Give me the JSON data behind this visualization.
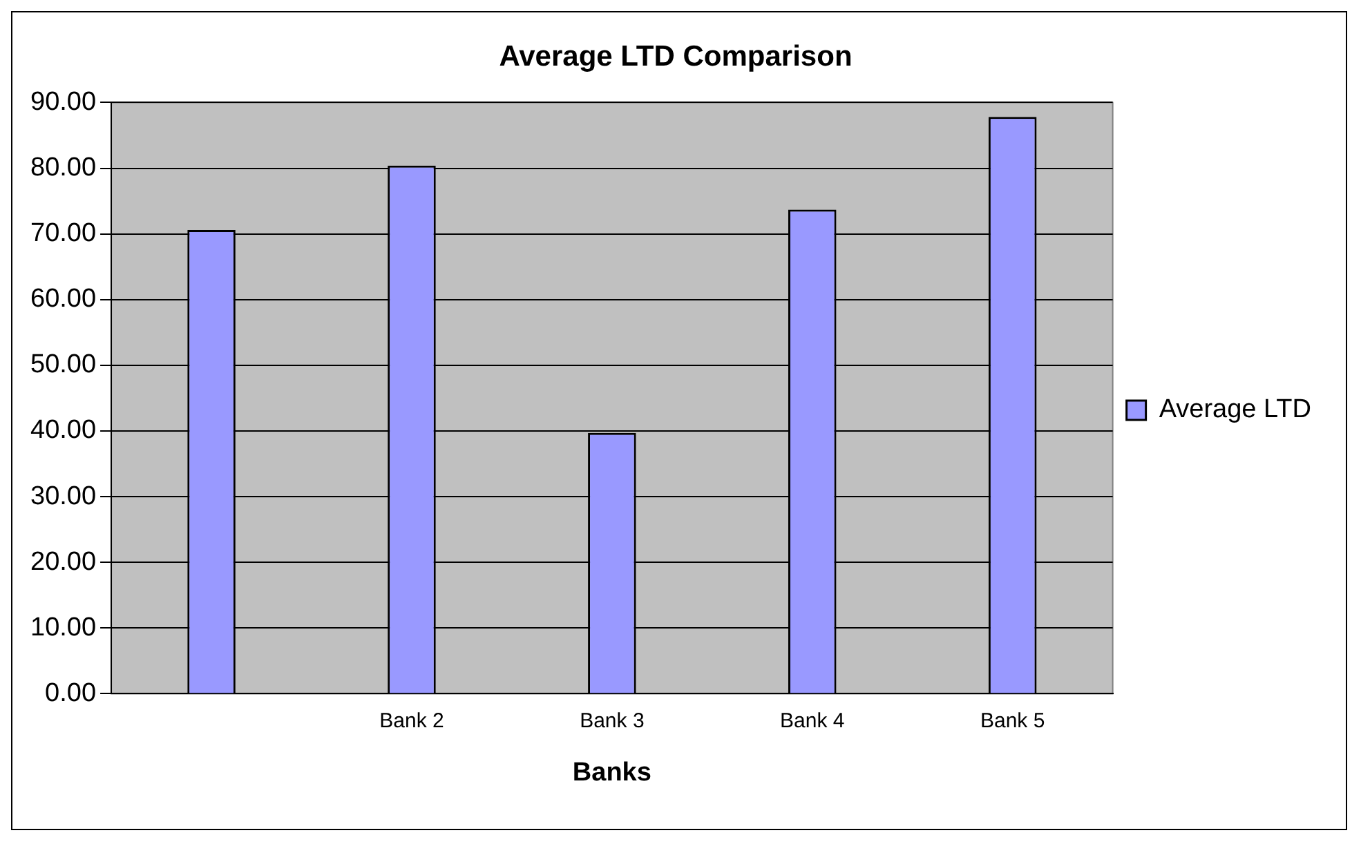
{
  "chart_data": {
    "type": "bar",
    "title": "Average LTD Comparison",
    "xlabel": "Banks",
    "categories": [
      null,
      "Bank 2",
      "Bank 3",
      "Bank 4",
      "Bank 5"
    ],
    "series": [
      {
        "name": "Average LTD",
        "color": "#9999ff",
        "values": [
          70.6,
          80.4,
          39.7,
          73.7,
          87.8
        ]
      }
    ],
    "ylim": [
      0,
      90
    ],
    "yticks": [
      {
        "value": 0,
        "label": "0.00"
      },
      {
        "value": 10,
        "label": "10.00"
      },
      {
        "value": 20,
        "label": "20.00"
      },
      {
        "value": 30,
        "label": "30.00"
      },
      {
        "value": 40,
        "label": "40.00"
      },
      {
        "value": 50,
        "label": "50.00"
      },
      {
        "value": 60,
        "label": "60.00"
      },
      {
        "value": 70,
        "label": "70.00"
      },
      {
        "value": 80,
        "label": "80.00"
      },
      {
        "value": 90,
        "label": "90.00"
      }
    ],
    "grid": "y",
    "legend": "right"
  }
}
